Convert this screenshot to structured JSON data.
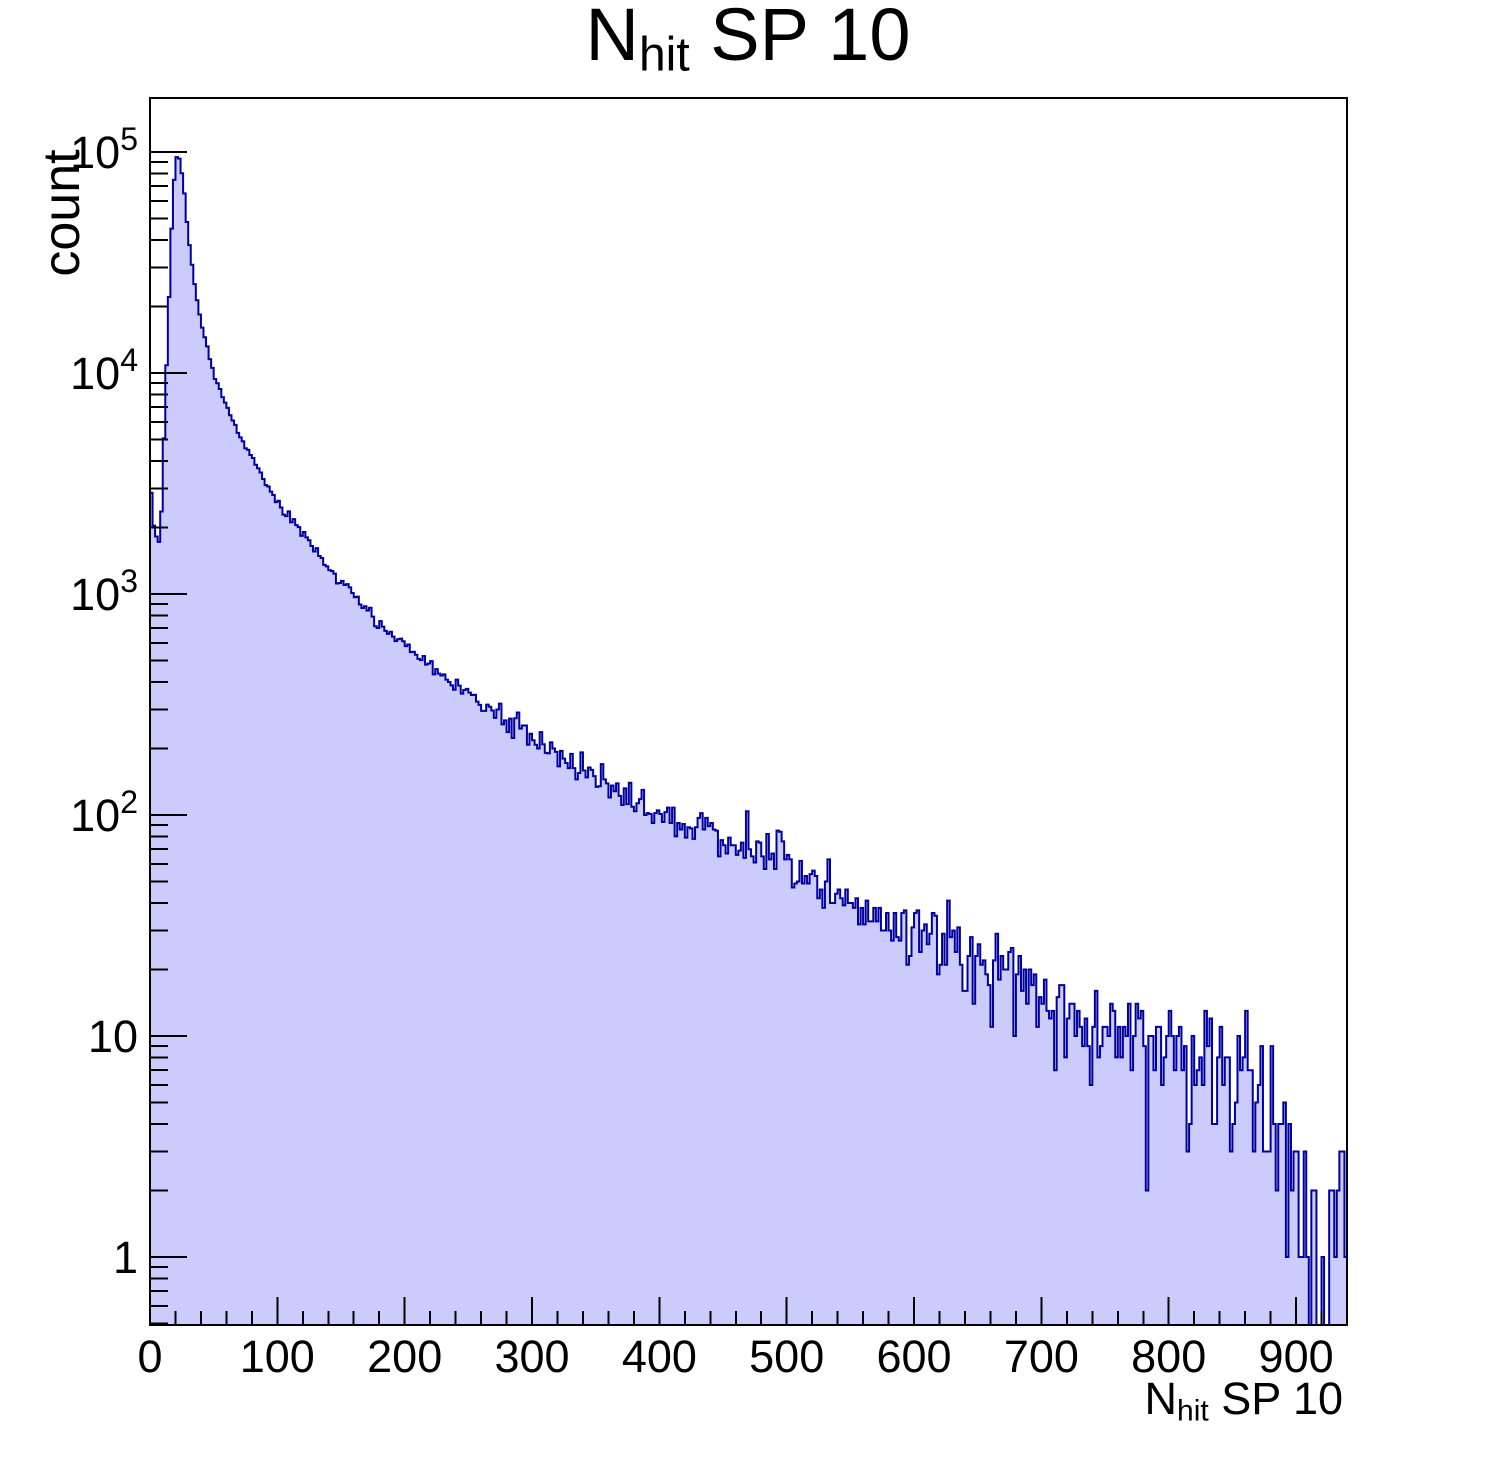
{
  "title": {
    "prefix": "N",
    "subscript": "hit",
    "suffix": " SP 10"
  },
  "y_axis": {
    "title": "count",
    "scale": "log",
    "tick_labels": [
      {
        "base": "1",
        "exp": "",
        "value": 1
      },
      {
        "base": "10",
        "exp": "",
        "value": 10
      },
      {
        "base": "10",
        "exp": "2",
        "value": 100
      },
      {
        "base": "10",
        "exp": "3",
        "value": 1000
      },
      {
        "base": "10",
        "exp": "4",
        "value": 10000
      },
      {
        "base": "10",
        "exp": "5",
        "value": 100000
      }
    ]
  },
  "x_axis": {
    "title_prefix": "N",
    "title_subscript": "hit",
    "title_suffix": " SP 10",
    "min": 0,
    "max": 940,
    "major_step": 100,
    "minor_step": 20,
    "tick_labels": [
      "0",
      "100",
      "200",
      "300",
      "400",
      "500",
      "600",
      "700",
      "800",
      "900"
    ]
  },
  "chart_data": {
    "type": "bar",
    "subtype": "histogram",
    "title": "N_hit SP 10",
    "xlabel": "N_hit SP 10",
    "ylabel": "count",
    "x_range": [
      0,
      940
    ],
    "bin_width": 2,
    "y_scale": "log",
    "ylim": [
      0.49,
      175000
    ],
    "grid": false,
    "legend": "none",
    "peak": {
      "x": 21,
      "count": 95000
    },
    "first_bin_count": 2900,
    "envelope_x": [
      1,
      3,
      5,
      7,
      9,
      11,
      13,
      15,
      17,
      19,
      21,
      23,
      25,
      27,
      30,
      35,
      40,
      45,
      50,
      60,
      70,
      80,
      90,
      102,
      120,
      140,
      160,
      180,
      200,
      220,
      235,
      270,
      300,
      340,
      370,
      404,
      450,
      500,
      550,
      600,
      650,
      700,
      750,
      800,
      850,
      880,
      900,
      915,
      930,
      939
    ],
    "envelope_count": [
      2900,
      2050,
      1800,
      1700,
      2300,
      5000,
      11000,
      22000,
      45000,
      75000,
      95000,
      93000,
      80000,
      65000,
      42000,
      25000,
      17000,
      13000,
      10000,
      7100,
      5250,
      4200,
      3160,
      2510,
      1900,
      1320,
      1000,
      740,
      575,
      480,
      400,
      295,
      224,
      158,
      126,
      100,
      79,
      63,
      42,
      30,
      22,
      15,
      11,
      9.3,
      7.6,
      5.6,
      2.0,
      1.3,
      1.1,
      1.0
    ],
    "noise_model": "poisson",
    "random_seed": 20
  },
  "colors": {
    "fill": "#ccccfc",
    "line": "#0000a0",
    "axis": "#000000",
    "text": "#000000",
    "background": "#ffffff"
  }
}
